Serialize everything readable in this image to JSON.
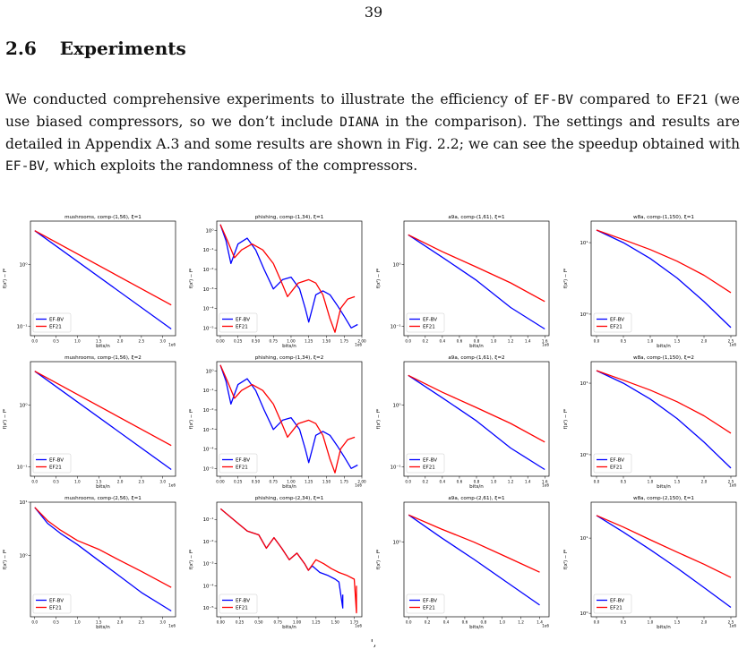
{
  "page_number": "39",
  "section": {
    "number": "2.6",
    "title": "Experiments"
  },
  "paragraph": {
    "s1": "We conducted comprehensive experiments to illustrate the efficiency of ",
    "c1": "EF-BV",
    "s2": " compared to ",
    "c2": "EF21",
    "s3": " (we use biased compressors, so we don’t include ",
    "c3": "DIANA",
    "s4": " in the comparison). The settings and results are detailed in Appendix A.3 and some results are shown in Fig. 2.2; we can see the speedup obtained with ",
    "c4": "EF-BV",
    "s5": ", which exploits the randomness of the compressors."
  },
  "caption_fragment": "',",
  "colors": {
    "ef_bv": "#0000ff",
    "ef21": "#ff0000"
  },
  "chart_data": [
    {
      "type": "line",
      "title": "mushrooms, comp-(1,56), ξ=1",
      "xlabel": "bits/n",
      "ylabel": "f(xᵗ) − f*",
      "x_exponent": "1e6",
      "xlim": [
        -0.1,
        3.3
      ],
      "xticks": [
        0.0,
        0.5,
        1.0,
        1.5,
        2.0,
        2.5,
        3.0
      ],
      "xtick_labels": [
        "0.0",
        "0.5",
        "1.0",
        "1.5",
        "2.0",
        "2.5",
        "3.0"
      ],
      "yscale": "log",
      "ylim": [
        0.07,
        5
      ],
      "yticks": [
        0.1,
        1
      ],
      "ytick_labels": [
        "10⁻¹",
        "10⁰"
      ],
      "legend": "lower-left",
      "series": [
        {
          "name": "EF-BV",
          "x": [
            0,
            3.2
          ],
          "y": [
            3.5,
            0.09
          ]
        },
        {
          "name": "EF21",
          "x": [
            0,
            3.2
          ],
          "y": [
            3.5,
            0.22
          ]
        }
      ]
    },
    {
      "type": "line",
      "title": "phishing, comp-(1,34), ξ=1",
      "xlabel": "bits/n",
      "ylabel": "f(xᵗ) − f*",
      "x_exponent": "1e6",
      "xlim": [
        -0.05,
        2.0
      ],
      "xticks": [
        0.0,
        0.25,
        0.5,
        0.75,
        1.0,
        1.25,
        1.5,
        1.75,
        2.0
      ],
      "xtick_labels": [
        "0.00",
        "0.25",
        "0.50",
        "0.75",
        "1.00",
        "1.25",
        "1.50",
        "1.75",
        "2.00"
      ],
      "yscale": "log",
      "ylim": [
        4e-06,
        3
      ],
      "yticks": [
        1e-05,
        0.0001,
        0.001,
        0.01,
        0.1,
        1
      ],
      "ytick_labels": [
        "10⁻⁵",
        "10⁻⁴",
        "10⁻³",
        "10⁻²",
        "10⁻¹",
        "10⁰"
      ],
      "legend": "lower-left",
      "series": [
        {
          "name": "EF-BV",
          "x": [
            0,
            0.08,
            0.15,
            0.25,
            0.38,
            0.5,
            0.62,
            0.75,
            0.88,
            1.0,
            1.12,
            1.2,
            1.25,
            1.3,
            1.35,
            1.45,
            1.55,
            1.65,
            1.75,
            1.85,
            1.94
          ],
          "y": [
            2,
            0.3,
            0.02,
            0.2,
            0.4,
            0.1,
            0.01,
            0.001,
            0.003,
            0.004,
            0.001,
            0.0001,
            2e-05,
            0.0001,
            0.0005,
            0.0008,
            0.0005,
            0.00015,
            4e-05,
            1e-05,
            1.5e-05
          ]
        },
        {
          "name": "EF21",
          "x": [
            0,
            0.1,
            0.2,
            0.3,
            0.45,
            0.6,
            0.75,
            0.85,
            0.95,
            1.1,
            1.25,
            1.35,
            1.45,
            1.55,
            1.62,
            1.7,
            1.8,
            1.9
          ],
          "y": [
            2,
            0.3,
            0.04,
            0.1,
            0.2,
            0.1,
            0.02,
            0.003,
            0.0004,
            0.002,
            0.003,
            0.002,
            0.0005,
            3e-05,
            6e-06,
            0.0001,
            0.0003,
            0.0004
          ]
        }
      ]
    },
    {
      "type": "line",
      "title": "a9a, comp-(1,61), ξ=1",
      "xlabel": "bits/n",
      "ylabel": "f(xᵗ) − f*",
      "x_exponent": "1e6",
      "xlim": [
        -0.05,
        1.65
      ],
      "xticks": [
        0.0,
        0.2,
        0.4,
        0.6,
        0.8,
        1.0,
        1.2,
        1.4,
        1.6
      ],
      "xtick_labels": [
        "0.0",
        "0.2",
        "0.4",
        "0.6",
        "0.8",
        "1.0",
        "1.2",
        "1.4",
        "1.6"
      ],
      "yscale": "log",
      "ylim": [
        0.07,
        5
      ],
      "yticks": [
        0.1,
        1
      ],
      "ytick_labels": [
        "10⁻¹",
        "10⁰"
      ],
      "legend": "lower-left",
      "series": [
        {
          "name": "EF-BV",
          "x": [
            0,
            0.4,
            0.8,
            1.2,
            1.6
          ],
          "y": [
            3.0,
            1.3,
            0.55,
            0.2,
            0.09
          ]
        },
        {
          "name": "EF21",
          "x": [
            0,
            0.4,
            0.8,
            1.2,
            1.6
          ],
          "y": [
            3.0,
            1.6,
            0.9,
            0.5,
            0.25
          ]
        }
      ]
    },
    {
      "type": "line",
      "title": "w8a, comp-(1,150), ξ=1",
      "xlabel": "bits/n",
      "ylabel": "f(xᵗ) − f*",
      "x_exponent": "1e6",
      "xlim": [
        -0.1,
        2.6
      ],
      "xticks": [
        0.0,
        0.5,
        1.0,
        1.5,
        2.0,
        2.5
      ],
      "xtick_labels": [
        "0.0",
        "0.5",
        "1.0",
        "1.5",
        "2.0",
        "2.5"
      ],
      "yscale": "log",
      "ylim": [
        0.5,
        20
      ],
      "yticks": [
        1,
        10
      ],
      "ytick_labels": [
        "10⁰",
        "10¹"
      ],
      "legend": "lower-left",
      "series": [
        {
          "name": "EF-BV",
          "x": [
            0,
            0.5,
            1.0,
            1.5,
            2.0,
            2.5
          ],
          "y": [
            15,
            10,
            6,
            3.2,
            1.5,
            0.65
          ]
        },
        {
          "name": "EF21",
          "x": [
            0,
            0.5,
            1.0,
            1.5,
            2.0,
            2.5
          ],
          "y": [
            15,
            11,
            8,
            5.5,
            3.5,
            2.0
          ]
        }
      ]
    },
    {
      "type": "line",
      "title": "mushrooms, comp-(1,56), ξ=2",
      "xlabel": "bits/n",
      "ylabel": "f(xᵗ) − f*",
      "x_exponent": "1e6",
      "xlim": [
        -0.1,
        3.3
      ],
      "xticks": [
        0.0,
        0.5,
        1.0,
        1.5,
        2.0,
        2.5,
        3.0
      ],
      "xtick_labels": [
        "0.0",
        "0.5",
        "1.0",
        "1.5",
        "2.0",
        "2.5",
        "3.0"
      ],
      "yscale": "log",
      "ylim": [
        0.07,
        5
      ],
      "yticks": [
        0.1,
        1
      ],
      "ytick_labels": [
        "10⁻¹",
        "10⁰"
      ],
      "legend": "lower-left",
      "series": [
        {
          "name": "EF-BV",
          "x": [
            0,
            3.2
          ],
          "y": [
            3.5,
            0.09
          ]
        },
        {
          "name": "EF21",
          "x": [
            0,
            3.2
          ],
          "y": [
            3.5,
            0.22
          ]
        }
      ]
    },
    {
      "type": "line",
      "title": "phishing, comp-(1,34), ξ=2",
      "xlabel": "bits/n",
      "ylabel": "f(xᵗ) − f*",
      "x_exponent": "1e6",
      "xlim": [
        -0.05,
        2.0
      ],
      "xticks": [
        0.0,
        0.25,
        0.5,
        0.75,
        1.0,
        1.25,
        1.5,
        1.75,
        2.0
      ],
      "xtick_labels": [
        "0.00",
        "0.25",
        "0.50",
        "0.75",
        "1.00",
        "1.25",
        "1.50",
        "1.75",
        "2.00"
      ],
      "yscale": "log",
      "ylim": [
        4e-06,
        3
      ],
      "yticks": [
        1e-05,
        0.0001,
        0.001,
        0.01,
        0.1,
        1
      ],
      "ytick_labels": [
        "10⁻⁵",
        "10⁻⁴",
        "10⁻³",
        "10⁻²",
        "10⁻¹",
        "10⁰"
      ],
      "legend": "lower-left",
      "series": [
        {
          "name": "EF-BV",
          "x": [
            0,
            0.08,
            0.15,
            0.25,
            0.38,
            0.5,
            0.62,
            0.75,
            0.88,
            1.0,
            1.12,
            1.2,
            1.25,
            1.3,
            1.35,
            1.45,
            1.55,
            1.65,
            1.75,
            1.85,
            1.94
          ],
          "y": [
            2,
            0.3,
            0.02,
            0.2,
            0.4,
            0.1,
            0.01,
            0.001,
            0.003,
            0.004,
            0.001,
            0.0001,
            2e-05,
            0.0001,
            0.0005,
            0.0008,
            0.0005,
            0.00015,
            4e-05,
            1e-05,
            1.5e-05
          ]
        },
        {
          "name": "EF21",
          "x": [
            0,
            0.1,
            0.2,
            0.3,
            0.45,
            0.6,
            0.75,
            0.85,
            0.95,
            1.1,
            1.25,
            1.35,
            1.45,
            1.55,
            1.62,
            1.7,
            1.8,
            1.9
          ],
          "y": [
            2,
            0.3,
            0.04,
            0.1,
            0.2,
            0.1,
            0.02,
            0.003,
            0.0004,
            0.002,
            0.003,
            0.002,
            0.0005,
            3e-05,
            6e-06,
            0.0001,
            0.0003,
            0.0004
          ]
        }
      ]
    },
    {
      "type": "line",
      "title": "a9a, comp-(1,61), ξ=2",
      "xlabel": "bits/n",
      "ylabel": "f(xᵗ) − f*",
      "x_exponent": "1e6",
      "xlim": [
        -0.05,
        1.65
      ],
      "xticks": [
        0.0,
        0.2,
        0.4,
        0.6,
        0.8,
        1.0,
        1.2,
        1.4,
        1.6
      ],
      "xtick_labels": [
        "0.0",
        "0.2",
        "0.4",
        "0.6",
        "0.8",
        "1.0",
        "1.2",
        "1.4",
        "1.6"
      ],
      "yscale": "log",
      "ylim": [
        0.07,
        5
      ],
      "yticks": [
        0.1,
        1
      ],
      "ytick_labels": [
        "10⁻¹",
        "10⁰"
      ],
      "legend": "lower-left",
      "series": [
        {
          "name": "EF-BV",
          "x": [
            0,
            0.4,
            0.8,
            1.2,
            1.6
          ],
          "y": [
            3.0,
            1.3,
            0.55,
            0.2,
            0.09
          ]
        },
        {
          "name": "EF21",
          "x": [
            0,
            0.4,
            0.8,
            1.2,
            1.6
          ],
          "y": [
            3.0,
            1.6,
            0.9,
            0.5,
            0.25
          ]
        }
      ]
    },
    {
      "type": "line",
      "title": "w8a, comp-(1,150), ξ=2",
      "xlabel": "bits/n",
      "ylabel": "f(xᵗ) − f*",
      "x_exponent": "1e6",
      "xlim": [
        -0.1,
        2.6
      ],
      "xticks": [
        0.0,
        0.5,
        1.0,
        1.5,
        2.0,
        2.5
      ],
      "xtick_labels": [
        "0.0",
        "0.5",
        "1.0",
        "1.5",
        "2.0",
        "2.5"
      ],
      "yscale": "log",
      "ylim": [
        0.5,
        20
      ],
      "yticks": [
        1,
        10
      ],
      "ytick_labels": [
        "10⁰",
        "10¹"
      ],
      "legend": "lower-left",
      "series": [
        {
          "name": "EF-BV",
          "x": [
            0,
            0.5,
            1.0,
            1.5,
            2.0,
            2.5
          ],
          "y": [
            15,
            10,
            6,
            3.2,
            1.5,
            0.65
          ]
        },
        {
          "name": "EF21",
          "x": [
            0,
            0.5,
            1.0,
            1.5,
            2.0,
            2.5
          ],
          "y": [
            15,
            11,
            8,
            5.5,
            3.5,
            2.0
          ]
        }
      ]
    },
    {
      "type": "line",
      "title": "mushrooms, comp-(2,56), ξ=1",
      "xlabel": "bits/n",
      "ylabel": "f(xᵗ) − f*",
      "x_exponent": "1e6",
      "xlim": [
        -0.1,
        3.3
      ],
      "xticks": [
        0.0,
        0.5,
        1.0,
        1.5,
        2.0,
        2.5,
        3.0
      ],
      "xtick_labels": [
        "0.0",
        "0.5",
        "1.0",
        "1.5",
        "2.0",
        "2.5",
        "3.0"
      ],
      "yscale": "log",
      "ylim": [
        0.07,
        10
      ],
      "yticks": [
        1,
        10
      ],
      "ytick_labels": [
        "10⁰",
        "10¹"
      ],
      "legend": "lower-left",
      "series": [
        {
          "name": "EF-BV",
          "x": [
            0,
            0.3,
            0.6,
            1.0,
            1.5,
            2.0,
            2.5,
            3.2
          ],
          "y": [
            8,
            4.0,
            2.6,
            1.6,
            0.8,
            0.4,
            0.2,
            0.09
          ]
        },
        {
          "name": "EF21",
          "x": [
            0,
            0.3,
            0.6,
            1.0,
            1.5,
            2.0,
            2.5,
            3.2
          ],
          "y": [
            8,
            4.5,
            3.0,
            1.9,
            1.3,
            0.8,
            0.5,
            0.25
          ]
        }
      ]
    },
    {
      "type": "line",
      "title": "phishing, comp-(2,34), ξ=1",
      "xlabel": "bits/n",
      "ylabel": "f(xᵗ) − f*",
      "x_exponent": "1e6",
      "xlim": [
        -0.05,
        1.85
      ],
      "xticks": [
        0.0,
        0.25,
        0.5,
        0.75,
        1.0,
        1.25,
        1.5,
        1.75
      ],
      "xtick_labels": [
        "0.00",
        "0.25",
        "0.50",
        "0.75",
        "1.00",
        "1.25",
        "1.50",
        "1.75"
      ],
      "yscale": "log",
      "ylim": [
        4e-06,
        0.6
      ],
      "yticks": [
        1e-05,
        0.0001,
        0.001,
        0.01,
        0.1
      ],
      "ytick_labels": [
        "10⁻⁵",
        "10⁻⁴",
        "10⁻³",
        "10⁻²",
        "10⁻¹"
      ],
      "legend": "lower-left",
      "series": [
        {
          "name": "EF-BV",
          "x": [
            0,
            0.2,
            0.35,
            0.5,
            0.6,
            0.7,
            0.8,
            0.9,
            1.0,
            1.1,
            1.15,
            1.2,
            1.3,
            1.4,
            1.5,
            1.55,
            1.6,
            1.6
          ],
          "y": [
            0.3,
            0.08,
            0.03,
            0.02,
            0.005,
            0.015,
            0.005,
            0.0015,
            0.003,
            0.001,
            0.0005,
            0.0008,
            0.0004,
            0.0003,
            0.0002,
            0.00015,
            1e-05,
            4e-05
          ]
        },
        {
          "name": "EF21",
          "x": [
            0,
            0.2,
            0.35,
            0.5,
            0.6,
            0.7,
            0.8,
            0.9,
            1.0,
            1.1,
            1.15,
            1.25,
            1.35,
            1.45,
            1.55,
            1.65,
            1.75,
            1.78,
            1.78
          ],
          "y": [
            0.3,
            0.08,
            0.03,
            0.02,
            0.005,
            0.015,
            0.005,
            0.0015,
            0.003,
            0.001,
            0.0005,
            0.0015,
            0.001,
            0.0006,
            0.0004,
            0.0003,
            0.0002,
            6e-06,
            0.0001
          ]
        }
      ]
    },
    {
      "type": "line",
      "title": "a9a, comp-(2,61), ξ=1",
      "xlabel": "bits/n",
      "ylabel": "f(xᵗ) − f*",
      "x_exponent": "1e6",
      "xlim": [
        -0.05,
        1.5
      ],
      "xticks": [
        0.0,
        0.2,
        0.4,
        0.6,
        0.8,
        1.0,
        1.2,
        1.4
      ],
      "xtick_labels": [
        "0.0",
        "0.2",
        "0.4",
        "0.6",
        "0.8",
        "1.0",
        "1.2",
        "1.4"
      ],
      "yscale": "log",
      "ylim": [
        0.05,
        5
      ],
      "yticks": [
        1
      ],
      "ytick_labels": [
        "10⁰"
      ],
      "legend": "lower-left",
      "series": [
        {
          "name": "EF-BV",
          "x": [
            0,
            0.35,
            0.7,
            1.05,
            1.4
          ],
          "y": [
            3.0,
            1.2,
            0.5,
            0.2,
            0.08
          ]
        },
        {
          "name": "EF21",
          "x": [
            0,
            0.35,
            0.7,
            1.05,
            1.4
          ],
          "y": [
            3.0,
            1.7,
            1.0,
            0.55,
            0.3
          ]
        }
      ]
    },
    {
      "type": "line",
      "title": "w8a, comp-(2,150), ξ=1",
      "xlabel": "bits/n",
      "ylabel": "f(xᵗ) − f*",
      "x_exponent": "1e6",
      "xlim": [
        -0.1,
        2.6
      ],
      "xticks": [
        0.0,
        0.5,
        1.0,
        1.5,
        2.0,
        2.5
      ],
      "xtick_labels": [
        "0.0",
        "0.5",
        "1.0",
        "1.5",
        "2.0",
        "2.5"
      ],
      "yscale": "log",
      "ylim": [
        0.9,
        30
      ],
      "yticks": [
        1,
        10
      ],
      "ytick_labels": [
        "10⁰",
        "10¹"
      ],
      "legend": "lower-left",
      "series": [
        {
          "name": "EF-BV",
          "x": [
            0,
            0.5,
            1.0,
            1.5,
            2.0,
            2.5
          ],
          "y": [
            20,
            12,
            7,
            4,
            2.2,
            1.2
          ]
        },
        {
          "name": "EF21",
          "x": [
            0,
            0.5,
            1.0,
            1.5,
            2.0,
            2.5
          ],
          "y": [
            20,
            14,
            9.5,
            6.5,
            4.5,
            3.0
          ]
        }
      ]
    }
  ]
}
